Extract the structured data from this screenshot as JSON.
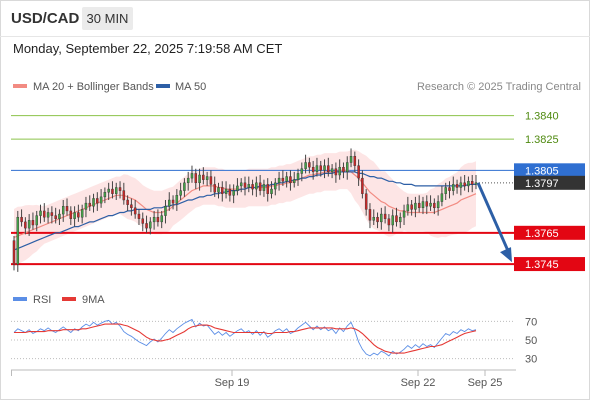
{
  "header": {
    "symbol": "USD/CAD",
    "timeframe": "30 MIN",
    "datetime": "Monday, September 22, 2025 7:19:58 AM CET"
  },
  "legend": {
    "ma20": "MA 20 + Bollinger Bands",
    "ma50": "MA 50",
    "credit": "Research © 2025 Trading Central",
    "rsi": "RSI",
    "ma9": "9MA"
  },
  "colors": {
    "candle_up": "#43a047",
    "candle_down": "#c62828",
    "ma20": "#f28b82",
    "ma50": "#2d5fa6",
    "band_fill": "#fde0e0",
    "resistance": "#8bc34a",
    "support": "#e30613",
    "pivot": "#2f6fd1",
    "last_price": "#333333",
    "rsi": "#5b8ee6",
    "rsi_ma": "#e53935",
    "arrow": "#2d5fa6"
  },
  "chart_data": [
    {
      "type": "candlestick",
      "title": "",
      "x_ticks": [
        "Sep 19",
        "Sep 22",
        "Sep 25"
      ],
      "ylim": [
        1.3738,
        1.385
      ],
      "levels": [
        {
          "label": "1.3840",
          "value": 1.384,
          "kind": "resistance"
        },
        {
          "label": "1.3825",
          "value": 1.3825,
          "kind": "resistance"
        },
        {
          "label": "1.3805",
          "value": 1.3805,
          "kind": "pivot"
        },
        {
          "label": "1.3797",
          "value": 1.3797,
          "kind": "last"
        },
        {
          "label": "1.3765",
          "value": 1.3765,
          "kind": "support"
        },
        {
          "label": "1.3745",
          "value": 1.3745,
          "kind": "support"
        }
      ],
      "close": [
        1.3745,
        1.3775,
        1.3772,
        1.3768,
        1.3773,
        1.377,
        1.3776,
        1.3779,
        1.3775,
        1.3778,
        1.3776,
        1.3774,
        1.3777,
        1.3782,
        1.3779,
        1.3774,
        1.3778,
        1.3775,
        1.378,
        1.3784,
        1.3782,
        1.3787,
        1.3784,
        1.3788,
        1.3791,
        1.3793,
        1.379,
        1.3794,
        1.3792,
        1.3786,
        1.3783,
        1.3781,
        1.3777,
        1.3774,
        1.3771,
        1.3768,
        1.3772,
        1.3775,
        1.3772,
        1.3776,
        1.3782,
        1.3786,
        1.3784,
        1.3789,
        1.3792,
        1.3797,
        1.38,
        1.3803,
        1.3797,
        1.3802,
        1.3799,
        1.3801,
        1.3796,
        1.3791,
        1.3794,
        1.379,
        1.3793,
        1.3789,
        1.3792,
        1.3795,
        1.3797,
        1.3794,
        1.3796,
        1.3793,
        1.3797,
        1.3792,
        1.3796,
        1.379,
        1.3793,
        1.3797,
        1.38,
        1.3798,
        1.3801,
        1.3797,
        1.3799,
        1.3803,
        1.3806,
        1.381,
        1.3807,
        1.3804,
        1.3808,
        1.3805,
        1.3808,
        1.3804,
        1.3806,
        1.3802,
        1.3807,
        1.3804,
        1.381,
        1.3814,
        1.3808,
        1.38,
        1.379,
        1.378,
        1.3773,
        1.3775,
        1.3772,
        1.3777,
        1.3774,
        1.377,
        1.3776,
        1.3772,
        1.3775,
        1.3779,
        1.3783,
        1.378,
        1.3784,
        1.3781,
        1.3785,
        1.3782,
        1.3784,
        1.3781,
        1.3785,
        1.379,
        1.3794,
        1.3792,
        1.3796,
        1.3794,
        1.3797,
        1.3795,
        1.3798,
        1.3796,
        1.3797
      ],
      "overlays": {
        "ma20": [
          1.3762,
          1.3763,
          1.3764,
          1.3765,
          1.3766,
          1.3767,
          1.3768,
          1.3769,
          1.377,
          1.3771,
          1.3772,
          1.3773,
          1.3774,
          1.3775,
          1.3776,
          1.3777,
          1.3778,
          1.3779,
          1.378,
          1.3781,
          1.3782,
          1.3783,
          1.3784,
          1.3785,
          1.3786,
          1.3787,
          1.3788,
          1.3789,
          1.3789,
          1.3789,
          1.3788,
          1.3787,
          1.3786,
          1.3784,
          1.3782,
          1.378,
          1.3779,
          1.3778,
          1.3778,
          1.3778,
          1.3779,
          1.378,
          1.3782,
          1.3784,
          1.3786,
          1.3788,
          1.379,
          1.3792,
          1.3793,
          1.3794,
          1.3795,
          1.3795,
          1.3795,
          1.3795,
          1.3794,
          1.3794,
          1.3793,
          1.3793,
          1.3793,
          1.3793,
          1.3793,
          1.3793,
          1.3794,
          1.3794,
          1.3794,
          1.3794,
          1.3794,
          1.3794,
          1.3795,
          1.3795,
          1.3796,
          1.3796,
          1.3797,
          1.3797,
          1.3798,
          1.3799,
          1.38,
          1.3801,
          1.3802,
          1.3802,
          1.3803,
          1.3803,
          1.3804,
          1.3804,
          1.3804,
          1.3804,
          1.3805,
          1.3805,
          1.3805,
          1.3804,
          1.3802,
          1.38,
          1.3797,
          1.3794,
          1.3791,
          1.3789,
          1.3787,
          1.3785,
          1.3784,
          1.3782,
          1.3781,
          1.378,
          1.3779,
          1.3779,
          1.3778,
          1.3778,
          1.3778,
          1.3778,
          1.3778,
          1.3778,
          1.3778,
          1.3778,
          1.3779,
          1.378,
          1.3781,
          1.3782,
          1.3783,
          1.3784,
          1.3786,
          1.3787,
          1.3788,
          1.3789,
          1.379
        ],
        "ma50": [
          1.3754,
          1.3755,
          1.3756,
          1.3757,
          1.3758,
          1.3759,
          1.376,
          1.3761,
          1.3762,
          1.3763,
          1.3764,
          1.3765,
          1.3765,
          1.3766,
          1.3767,
          1.3768,
          1.3769,
          1.3769,
          1.377,
          1.3771,
          1.3772,
          1.3772,
          1.3773,
          1.3774,
          1.3775,
          1.3776,
          1.3776,
          1.3777,
          1.3778,
          1.3778,
          1.3779,
          1.3779,
          1.378,
          1.378,
          1.378,
          1.378,
          1.378,
          1.3781,
          1.3781,
          1.3781,
          1.3782,
          1.3782,
          1.3783,
          1.3783,
          1.3784,
          1.3785,
          1.3786,
          1.3786,
          1.3787,
          1.3788,
          1.3788,
          1.3789,
          1.3789,
          1.379,
          1.379,
          1.3791,
          1.3791,
          1.3792,
          1.3792,
          1.3792,
          1.3793,
          1.3793,
          1.3794,
          1.3794,
          1.3794,
          1.3795,
          1.3795,
          1.3795,
          1.3796,
          1.3796,
          1.3797,
          1.3797,
          1.3798,
          1.3798,
          1.3799,
          1.3799,
          1.38,
          1.38,
          1.3801,
          1.3801,
          1.3802,
          1.3802,
          1.3803,
          1.3803,
          1.3803,
          1.3804,
          1.3804,
          1.3804,
          1.3804,
          1.3804,
          1.3804,
          1.3803,
          1.3803,
          1.3802,
          1.3801,
          1.3801,
          1.38,
          1.38,
          1.3799,
          1.3798,
          1.3798,
          1.3797,
          1.3797,
          1.3796,
          1.3796,
          1.3796,
          1.3795,
          1.3795,
          1.3795,
          1.3795,
          1.3795,
          1.3795,
          1.3795,
          1.3795,
          1.3795,
          1.3795,
          1.3795,
          1.3795,
          1.3795,
          1.3795,
          1.3796,
          1.3796,
          1.3796
        ]
      },
      "projection": {
        "from": 1.3797,
        "to": 1.3745
      }
    },
    {
      "type": "line",
      "title": "RSI",
      "yticks": [
        70,
        50,
        30
      ],
      "ylim": [
        20,
        80
      ],
      "series": [
        {
          "name": "RSI",
          "values": [
            58,
            62,
            60,
            58,
            61,
            57,
            59,
            62,
            60,
            63,
            60,
            58,
            61,
            64,
            61,
            58,
            62,
            60,
            64,
            67,
            65,
            69,
            66,
            68,
            70,
            71,
            67,
            69,
            65,
            59,
            56,
            54,
            51,
            48,
            46,
            44,
            48,
            51,
            48,
            52,
            57,
            61,
            58,
            62,
            65,
            68,
            70,
            72,
            64,
            68,
            65,
            66,
            61,
            56,
            59,
            55,
            58,
            54,
            57,
            60,
            62,
            58,
            60,
            56,
            60,
            55,
            59,
            53,
            56,
            60,
            62,
            59,
            62,
            57,
            59,
            63,
            66,
            69,
            65,
            61,
            65,
            61,
            64,
            60,
            62,
            57,
            63,
            59,
            65,
            69,
            60,
            48,
            40,
            35,
            33,
            36,
            34,
            38,
            36,
            33,
            38,
            35,
            37,
            40,
            44,
            41,
            45,
            42,
            46,
            43,
            45,
            42,
            47,
            52,
            57,
            55,
            59,
            57,
            61,
            59,
            62,
            60,
            61
          ]
        },
        {
          "name": "9MA",
          "values": [
            58,
            58,
            58,
            58,
            59,
            59,
            59,
            59,
            59,
            60,
            60,
            60,
            60,
            61,
            61,
            61,
            61,
            61,
            62,
            62,
            63,
            64,
            65,
            66,
            67,
            67,
            67,
            67,
            67,
            66,
            65,
            63,
            61,
            59,
            56,
            53,
            51,
            50,
            49,
            49,
            50,
            51,
            53,
            55,
            57,
            59,
            62,
            64,
            65,
            66,
            66,
            66,
            65,
            63,
            62,
            61,
            60,
            59,
            58,
            58,
            58,
            58,
            58,
            58,
            58,
            58,
            58,
            57,
            57,
            58,
            58,
            58,
            58,
            59,
            59,
            60,
            61,
            62,
            63,
            63,
            63,
            63,
            63,
            63,
            63,
            62,
            62,
            62,
            62,
            63,
            62,
            60,
            57,
            53,
            49,
            45,
            42,
            40,
            38,
            37,
            36,
            36,
            36,
            36,
            37,
            38,
            39,
            40,
            41,
            42,
            43,
            43,
            44,
            45,
            47,
            49,
            51,
            53,
            55,
            57,
            58,
            59,
            60
          ]
        }
      ]
    }
  ]
}
